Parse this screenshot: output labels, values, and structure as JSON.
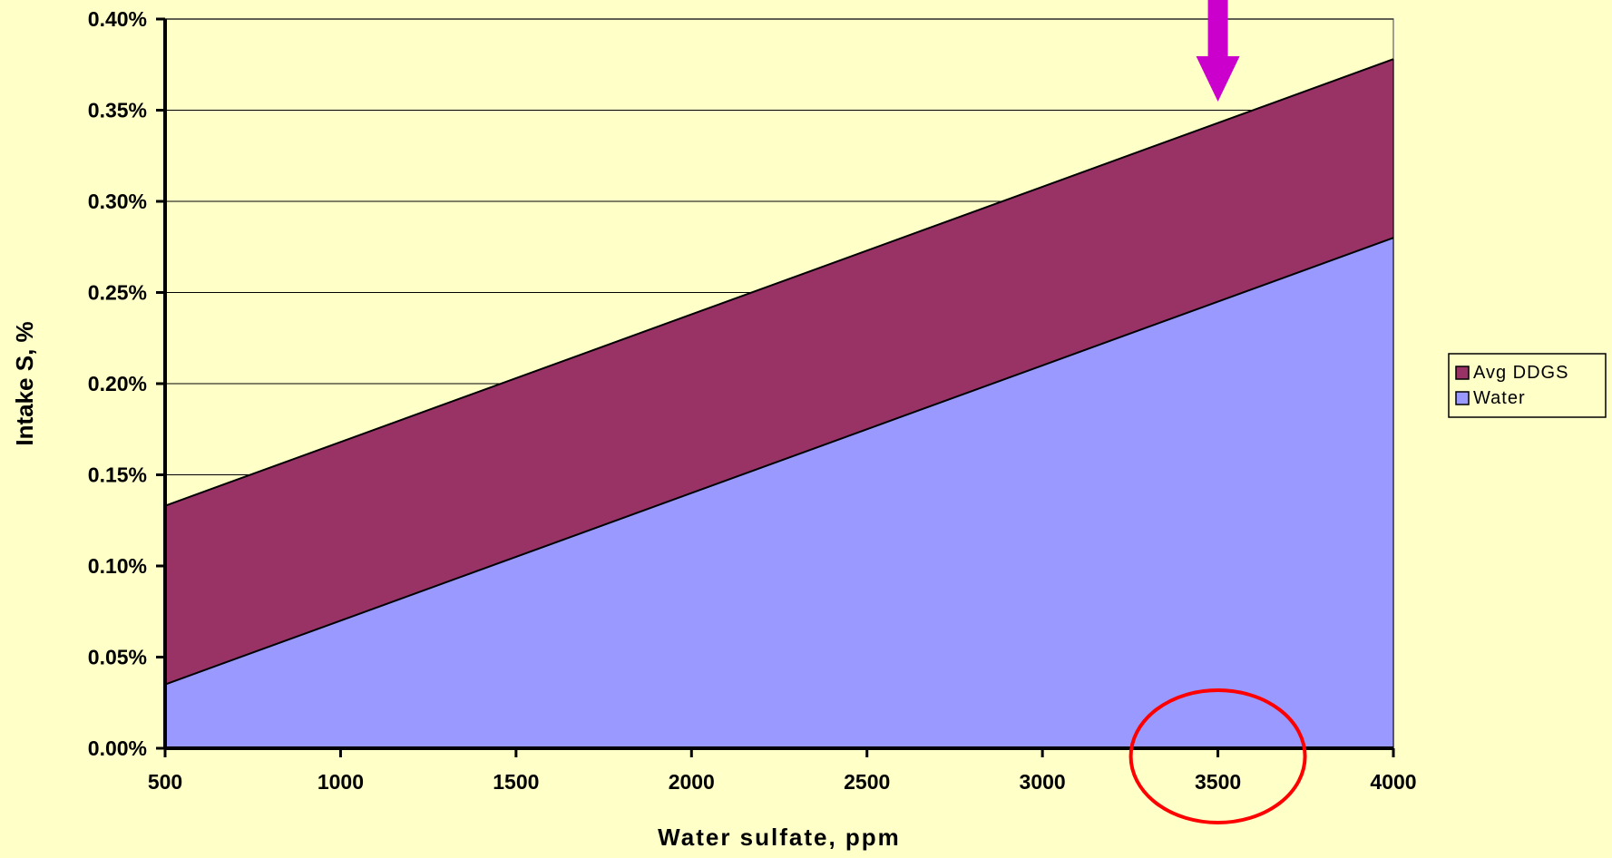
{
  "colors": {
    "background": "#FFFFC8",
    "plot_background": "#FFFFC8",
    "water_fill": "#9999FF",
    "ddgs_fill": "#993366",
    "arrow": "#CC00CC",
    "highlight_circle": "#FF0000"
  },
  "chart_data": {
    "type": "area",
    "stacked": true,
    "x": [
      500,
      4000
    ],
    "series": [
      {
        "name": "Water",
        "values": [
          0.035,
          0.28
        ],
        "color": "#9999FF"
      },
      {
        "name": "Avg DDGS",
        "values": [
          0.098,
          0.098
        ],
        "color": "#993366"
      }
    ],
    "xlabel": "Water sulfate, ppm",
    "ylabel": "Intake S, %",
    "xlim": [
      500,
      4000
    ],
    "ylim": [
      0,
      0.4
    ],
    "xticks": [
      "500",
      "1000",
      "1500",
      "2000",
      "2500",
      "3000",
      "3500",
      "4000"
    ],
    "yticks": [
      "0.00%",
      "0.05%",
      "0.10%",
      "0.15%",
      "0.20%",
      "0.25%",
      "0.30%",
      "0.35%",
      "0.40%"
    ],
    "grid": "horizontal",
    "legend": {
      "placement": "right",
      "entries": [
        "Avg DDGS",
        "Water"
      ]
    },
    "annotations": [
      {
        "type": "arrow",
        "x": 3500,
        "direction": "down",
        "color": "#CC00CC"
      },
      {
        "type": "circle",
        "target": "x tick 3500",
        "color": "#FF0000"
      }
    ]
  }
}
